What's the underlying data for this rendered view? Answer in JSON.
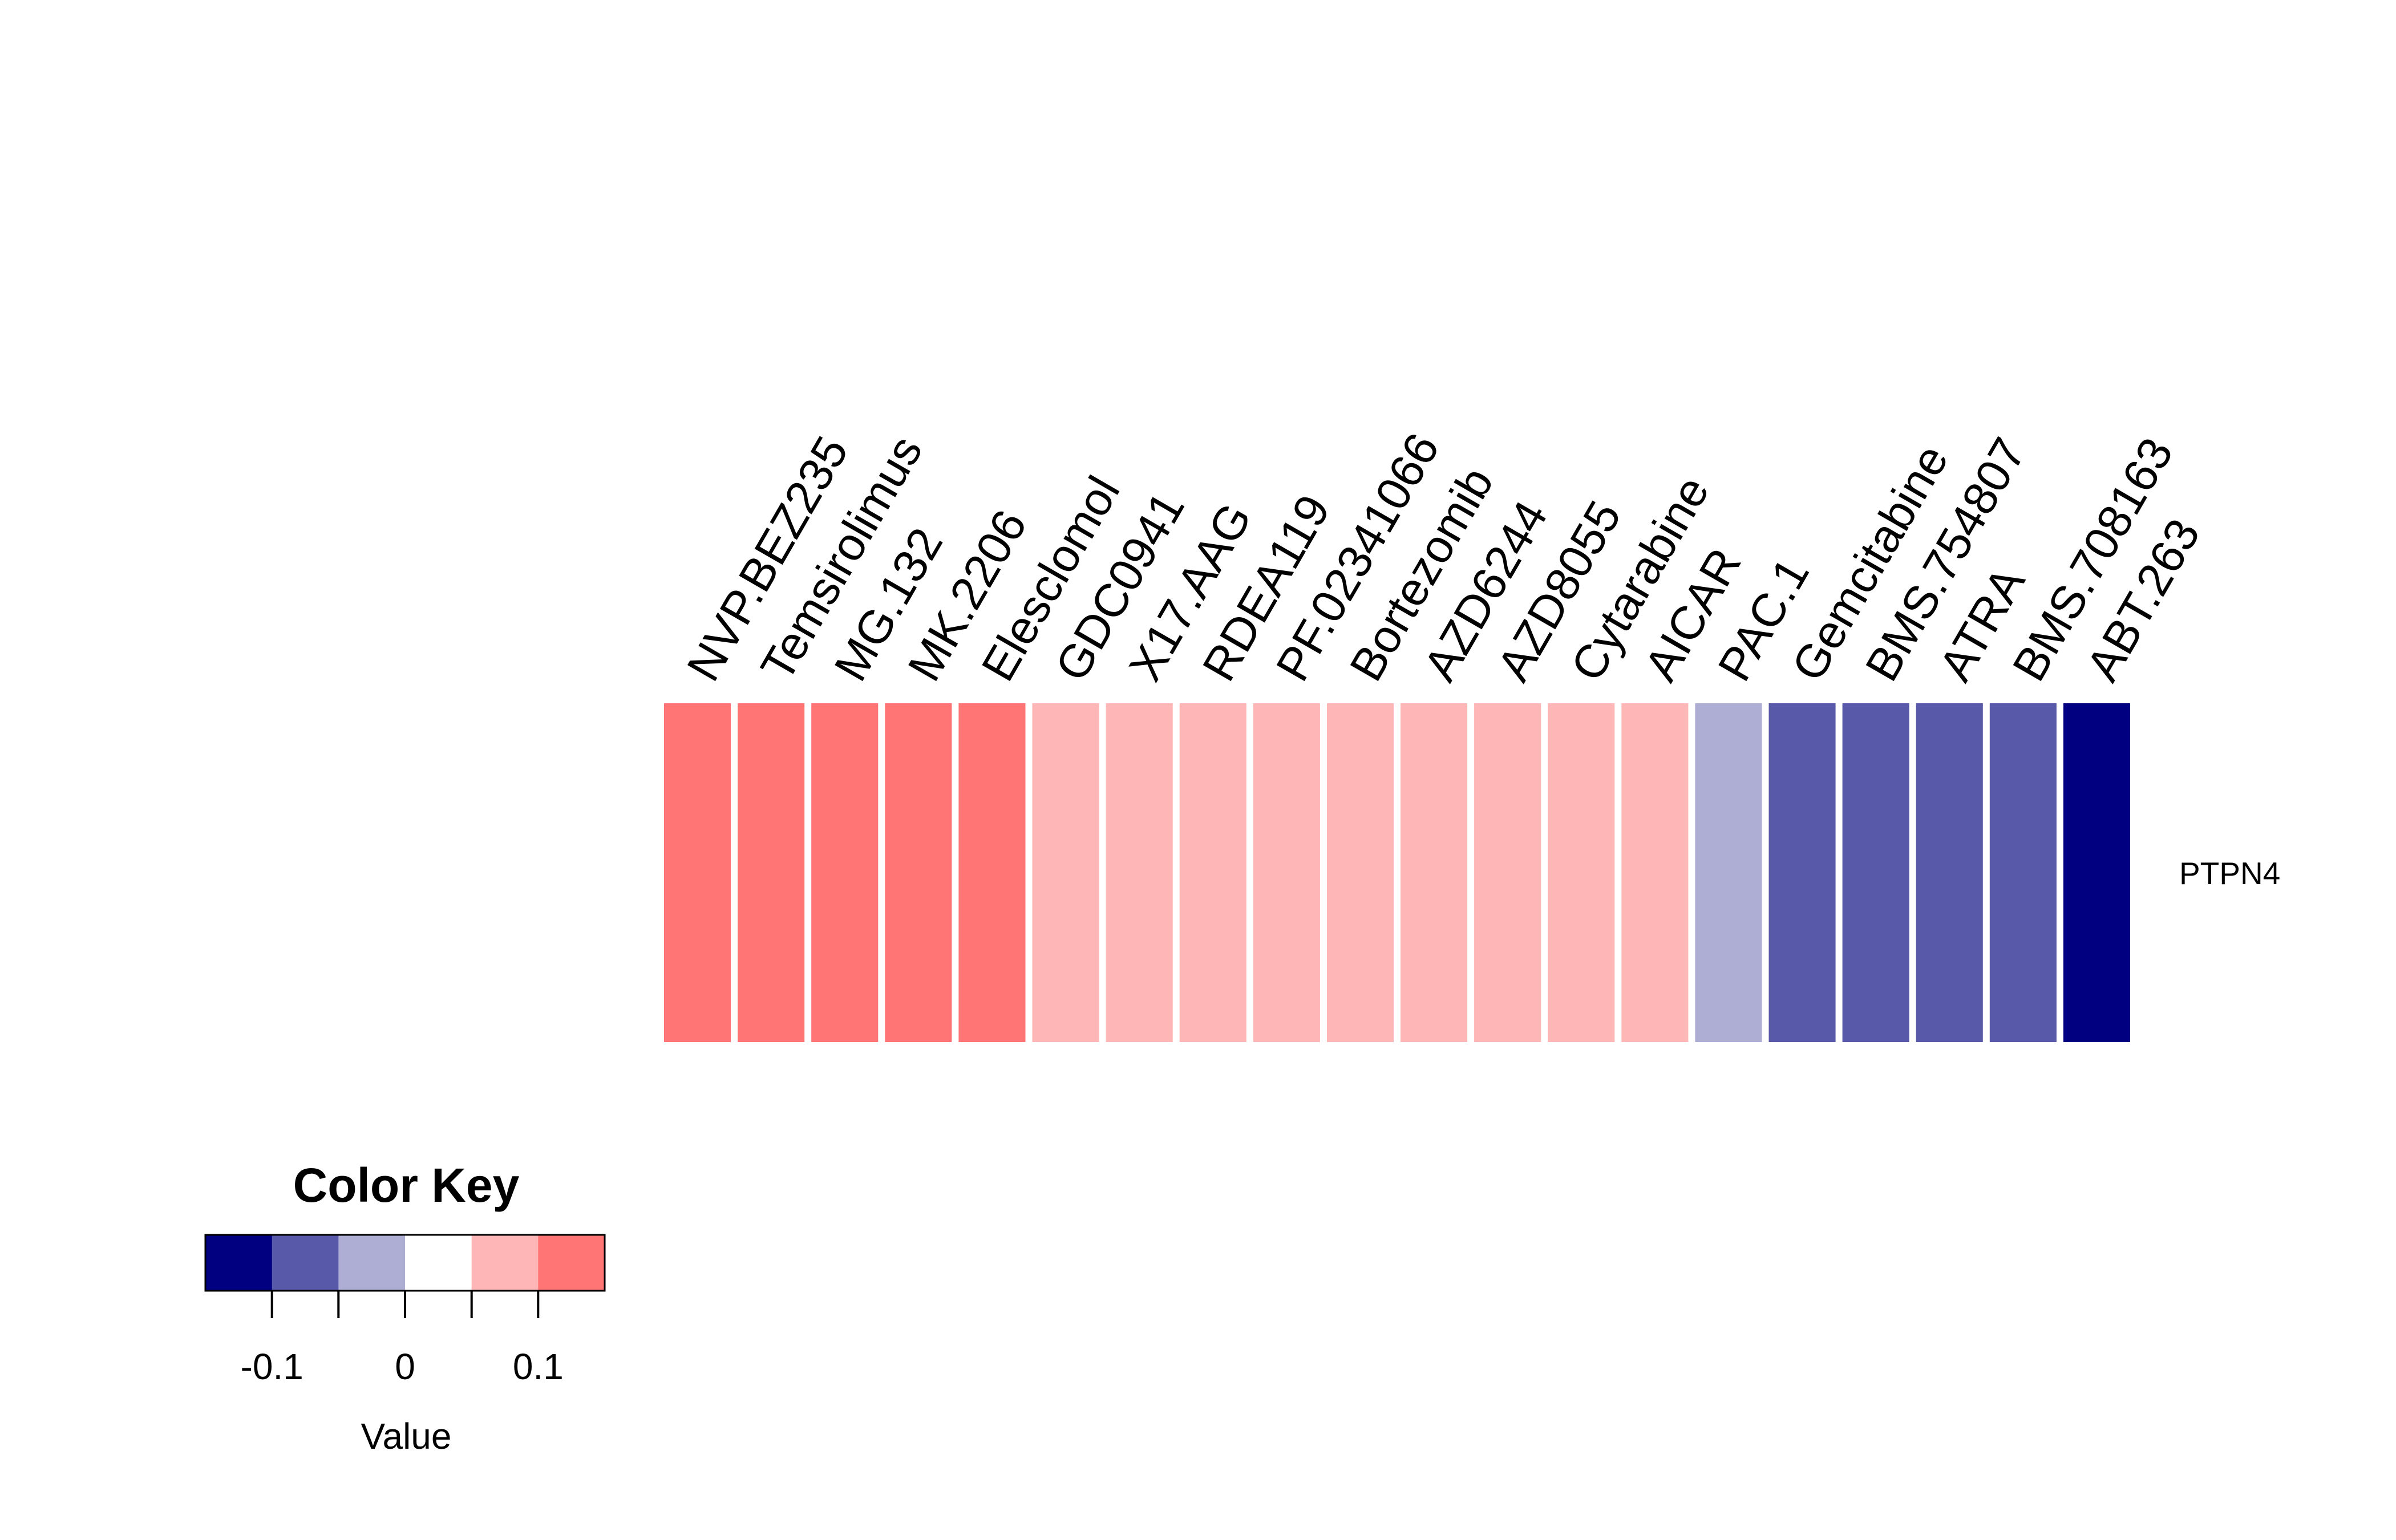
{
  "chart_data": {
    "type": "heatmap",
    "rows": [
      "PTPN4"
    ],
    "columns": [
      "NVP.BEZ235",
      "Temsirolimus",
      "MG.132",
      "MK.2206",
      "Elesclomol",
      "GDC0941",
      "X17.AAG",
      "RDEA119",
      "PF.02341066",
      "Bortezomib",
      "AZD6244",
      "AZD8055",
      "Cytarabine",
      "AICAR",
      "PAC.1",
      "Gemcitabine",
      "BMS.754807",
      "ATRA",
      "BMS.708163",
      "ABT.263"
    ],
    "values": [
      [
        0.13,
        0.13,
        0.13,
        0.13,
        0.13,
        0.08,
        0.08,
        0.08,
        0.08,
        0.08,
        0.08,
        0.08,
        0.08,
        0.08,
        -0.05,
        -0.09,
        -0.09,
        -0.09,
        -0.09,
        -0.14
      ]
    ],
    "color_key": {
      "title": "Color Key",
      "xlabel": "Value",
      "breaks": [
        -0.15,
        -0.1,
        -0.05,
        0,
        0.05,
        0.1,
        0.15
      ],
      "colors": [
        "#000080",
        "#5959aa",
        "#aeaed5",
        "#ffffff",
        "#ffb6b6",
        "#ff7575",
        "#ff3333"
      ],
      "ticks": [
        -0.1,
        -0.05,
        0,
        0.05,
        0.1
      ],
      "tick_labels": [
        "-0.1",
        "0",
        "0.1"
      ],
      "labeled_ticks": [
        -0.1,
        0,
        0.1
      ]
    }
  }
}
